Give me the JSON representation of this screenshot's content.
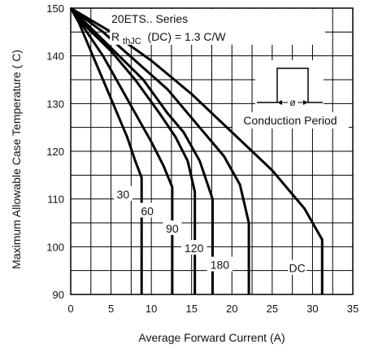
{
  "chart_data": {
    "type": "line",
    "xlabel": "Average Forward Current (A)",
    "ylabel": "Maximum Allowable Case Temperature ( C)",
    "xlim": [
      0,
      35
    ],
    "ylim": [
      90,
      150
    ],
    "x_ticks": [
      "0",
      "5",
      "10",
      "15",
      "20",
      "25",
      "30",
      "35"
    ],
    "y_ticks": [
      "90",
      "100",
      "110",
      "120",
      "130",
      "140",
      "150"
    ],
    "grid": true,
    "annotations": {
      "series_name": "20ETS.. Series",
      "rth_prefix": "R",
      "rth_sub": "thJC",
      "rth_suffix": "(DC) = 1.3  C/W",
      "inset_label": "Conduction Period",
      "phi_symbol": "ø"
    },
    "series": [
      {
        "name": "30",
        "points": [
          [
            0,
            150
          ],
          [
            1,
            147
          ],
          [
            2,
            143
          ],
          [
            3,
            139
          ],
          [
            4,
            135
          ],
          [
            5,
            131
          ],
          [
            6,
            127
          ],
          [
            7,
            123
          ],
          [
            8,
            118
          ],
          [
            8.8,
            114.5
          ]
        ],
        "drop_to": 90
      },
      {
        "name": "60",
        "points": [
          [
            0,
            150
          ],
          [
            2,
            145
          ],
          [
            4,
            140
          ],
          [
            6,
            134
          ],
          [
            8,
            128
          ],
          [
            10,
            122
          ],
          [
            11.5,
            117
          ],
          [
            12.6,
            112.5
          ]
        ],
        "drop_to": 90
      },
      {
        "name": "90",
        "points": [
          [
            0,
            150
          ],
          [
            2,
            146
          ],
          [
            5,
            141
          ],
          [
            8,
            135
          ],
          [
            11,
            128
          ],
          [
            13,
            123
          ],
          [
            14.5,
            118
          ],
          [
            15.4,
            111.5
          ]
        ],
        "drop_to": 90
      },
      {
        "name": "120",
        "points": [
          [
            0,
            150
          ],
          [
            3,
            145
          ],
          [
            6,
            140
          ],
          [
            9,
            135
          ],
          [
            12,
            128
          ],
          [
            14,
            124
          ],
          [
            16,
            118
          ],
          [
            17.6,
            110
          ]
        ],
        "drop_to": 90
      },
      {
        "name": "180",
        "points": [
          [
            0,
            150
          ],
          [
            4,
            145
          ],
          [
            8,
            139
          ],
          [
            12,
            133
          ],
          [
            16,
            125
          ],
          [
            19,
            119
          ],
          [
            21,
            113
          ],
          [
            22.1,
            105
          ]
        ],
        "drop_to": 90
      },
      {
        "name": "DC",
        "points": [
          [
            0,
            150
          ],
          [
            5,
            145
          ],
          [
            10,
            139
          ],
          [
            15,
            132
          ],
          [
            20,
            124
          ],
          [
            25,
            116
          ],
          [
            29,
            108
          ],
          [
            31.2,
            101.5
          ]
        ],
        "drop_to": 90
      }
    ]
  }
}
